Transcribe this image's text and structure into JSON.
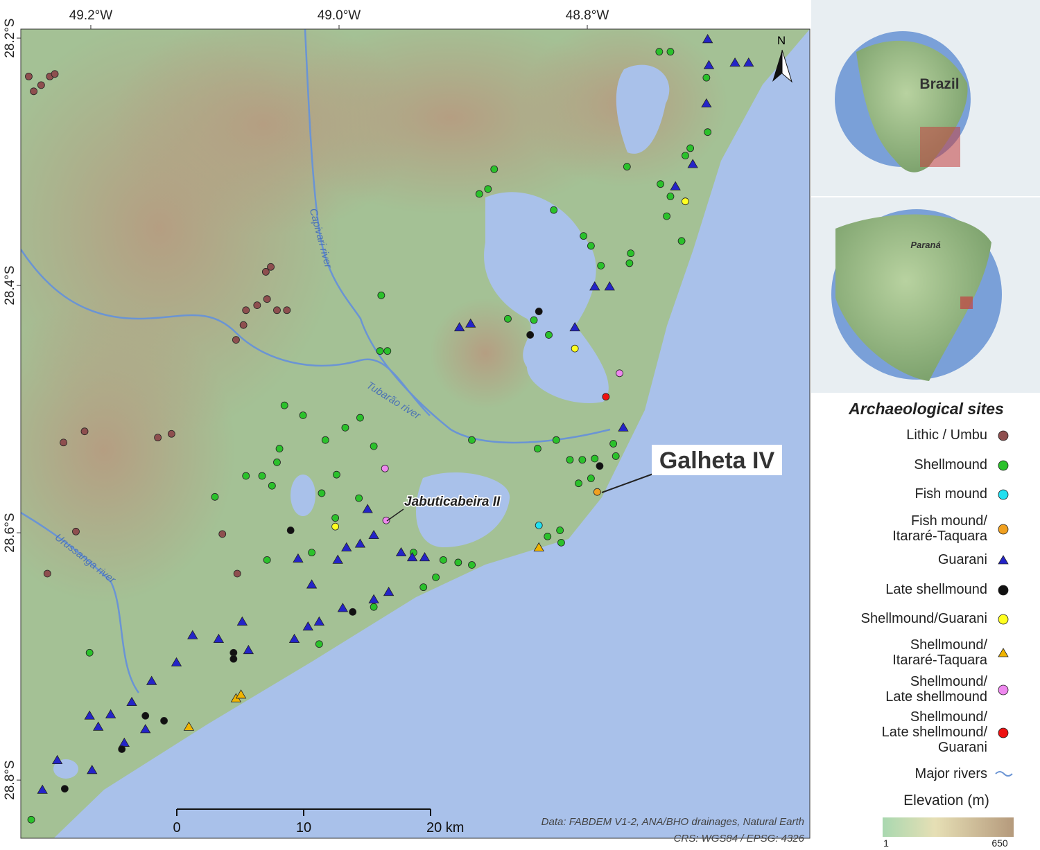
{
  "chart_data": {
    "type": "map",
    "xlim": [
      -49.2564,
      -48.6207
    ],
    "ylim": [
      -28.847,
      -28.1927
    ],
    "xticks": [
      {
        "value": -49.2,
        "label": "49.2°W"
      },
      {
        "value": -49.0,
        "label": "49.0°W"
      },
      {
        "value": -48.8,
        "label": "48.8°W"
      }
    ],
    "yticks": [
      {
        "value": -28.2,
        "label": "28.2°S"
      },
      {
        "value": -28.4,
        "label": "28.4°S"
      },
      {
        "value": -28.6,
        "label": "28.6°S"
      },
      {
        "value": -28.8,
        "label": "28.8°S"
      }
    ],
    "legend_title": "Archaeological sites",
    "sites": [
      {
        "name": "Lithic / Umbu",
        "color": "#8e4f4f",
        "marker": "circle",
        "lon": [
          -49.25,
          -49.246,
          -49.24,
          -49.233,
          -49.229,
          -49.059,
          -49.055,
          -49.075,
          -49.066,
          -49.058,
          -49.05,
          -49.042,
          -49.077,
          -49.083,
          -49.222,
          -49.205,
          -49.146,
          -49.135,
          -49.212,
          -49.094,
          -49.235,
          -49.082
        ],
        "lat": [
          -28.231,
          -28.243,
          -28.238,
          -28.231,
          -28.229,
          -28.389,
          -28.385,
          -28.42,
          -28.416,
          -28.411,
          -28.42,
          -28.42,
          -28.432,
          -28.444,
          -28.527,
          -28.518,
          -28.523,
          -28.52,
          -28.599,
          -28.601,
          -28.633,
          -28.633
        ]
      },
      {
        "name": "Shellmound",
        "color": "#2bc12b",
        "marker": "circle",
        "lon": [
          -48.742,
          -48.733,
          -48.704,
          -48.703,
          -48.721,
          -48.717,
          -48.875,
          -48.887,
          -48.88,
          -48.768,
          -48.741,
          -48.733,
          -48.736,
          -48.724,
          -48.827,
          -48.803,
          -48.797,
          -48.789,
          -48.765,
          -48.766,
          -48.966,
          -48.864,
          -48.843,
          -48.831,
          -48.967,
          -48.961,
          -49.044,
          -49.029,
          -49.011,
          -48.995,
          -48.983,
          -48.972,
          -49.048,
          -49.05,
          -49.062,
          -49.075,
          -49.054,
          -49.002,
          -49.014,
          -48.984,
          -49.1,
          -49.003,
          -49.058,
          -49.022,
          -48.893,
          -48.84,
          -48.825,
          -48.814,
          -48.804,
          -48.794,
          -48.779,
          -48.777,
          -48.807,
          -48.797,
          -48.822,
          -48.832,
          -48.821,
          -48.916,
          -48.904,
          -48.893,
          -48.922,
          -48.932,
          -48.972,
          -49.016,
          -49.201,
          -49.248,
          -48.94
        ],
        "lat": [
          -28.211,
          -28.211,
          -28.232,
          -28.276,
          -28.295,
          -28.289,
          -28.306,
          -28.326,
          -28.322,
          -28.304,
          -28.318,
          -28.328,
          -28.344,
          -28.364,
          -28.339,
          -28.36,
          -28.368,
          -28.384,
          -28.374,
          -28.382,
          -28.408,
          -28.427,
          -28.428,
          -28.44,
          -28.453,
          -28.453,
          -28.497,
          -28.505,
          -28.525,
          -28.515,
          -28.507,
          -28.53,
          -28.532,
          -28.543,
          -28.554,
          -28.554,
          -28.562,
          -28.553,
          -28.568,
          -28.572,
          -28.571,
          -28.588,
          -28.622,
          -28.616,
          -28.525,
          -28.532,
          -28.525,
          -28.541,
          -28.541,
          -28.54,
          -28.528,
          -28.538,
          -28.56,
          -28.556,
          -28.598,
          -28.603,
          -28.608,
          -28.622,
          -28.624,
          -28.626,
          -28.636,
          -28.644,
          -28.66,
          -28.69,
          -28.697,
          -28.832,
          -28.616
        ]
      },
      {
        "name": "Fish mound",
        "color": "#22e0f0",
        "marker": "circle",
        "lon": [
          -48.839
        ],
        "lat": [
          -28.594
        ]
      },
      {
        "name": "Fish mound/\nItararé-Taquara",
        "color": "#f0a020",
        "marker": "circle",
        "lon": [
          -48.792
        ],
        "lat": [
          -28.567
        ]
      },
      {
        "name": "Guarani",
        "color": "#2424c8",
        "marker": "triangle",
        "lon": [
          -48.703,
          -48.702,
          -48.681,
          -48.67,
          -48.704,
          -48.715,
          -48.729,
          -48.794,
          -48.782,
          -48.81,
          -48.903,
          -48.894,
          -48.977,
          -48.983,
          -48.972,
          -48.994,
          -49.001,
          -49.033,
          -48.95,
          -48.941,
          -48.931,
          -48.96,
          -48.997,
          -48.972,
          -49.022,
          -49.025,
          -49.036,
          -49.016,
          -49.078,
          -49.073,
          -49.097,
          -49.118,
          -49.131,
          -49.151,
          -49.167,
          -49.201,
          -49.184,
          -49.194,
          -49.156,
          -49.173,
          -49.199,
          -49.227,
          -49.239,
          -48.771
        ],
        "lat": [
          -28.201,
          -28.222,
          -28.22,
          -28.22,
          -28.253,
          -28.302,
          -28.32,
          -28.401,
          -28.401,
          -28.434,
          -28.434,
          -28.431,
          -28.581,
          -28.609,
          -28.602,
          -28.612,
          -28.622,
          -28.621,
          -28.616,
          -28.62,
          -28.62,
          -28.648,
          -28.661,
          -28.654,
          -28.642,
          -28.676,
          -28.686,
          -28.672,
          -28.672,
          -28.695,
          -28.686,
          -28.683,
          -28.705,
          -28.72,
          -28.737,
          -28.748,
          -28.747,
          -28.757,
          -28.759,
          -28.77,
          -28.792,
          -28.784,
          -28.808,
          -28.515
        ]
      },
      {
        "name": "Late shellmound",
        "color": "#111111",
        "marker": "circle",
        "lon": [
          -48.839,
          -48.846,
          -49.039,
          -48.989,
          -49.085,
          -49.085,
          -49.156,
          -49.141,
          -49.175,
          -49.221,
          -48.79
        ],
        "lat": [
          -28.421,
          -28.44,
          -28.598,
          -28.664,
          -28.697,
          -28.702,
          -28.748,
          -28.752,
          -28.775,
          -28.807,
          -28.546
        ]
      },
      {
        "name": "Shellmound/Guarani",
        "color": "#ffff20",
        "marker": "circle",
        "lon": [
          -48.721,
          -49.003,
          -48.81
        ],
        "lat": [
          -28.332,
          -28.595,
          -28.451
        ]
      },
      {
        "name": "Shellmound/\nItararé-Taquara",
        "color": "#f0b400",
        "marker": "triangle",
        "lon": [
          -48.839,
          -49.121,
          -49.083,
          -49.079
        ],
        "lat": [
          -28.612,
          -28.757,
          -28.734,
          -28.731
        ]
      },
      {
        "name": "Shellmound/\nLate shellmound",
        "color": "#ee88ee",
        "marker": "circle",
        "lon": [
          -48.962,
          -48.963,
          -48.774
        ],
        "lat": [
          -28.59,
          -28.548,
          -28.471
        ]
      },
      {
        "name": "Shellmound/\nLate shellmound/\nGuarani",
        "color": "#ee1111",
        "marker": "circle",
        "lon": [
          -48.785
        ],
        "lat": [
          -28.49
        ]
      }
    ],
    "rivers": {
      "name": "Major rivers",
      "color": "#6a94d4"
    },
    "elevation": {
      "title": "Elevation (m)",
      "range": [
        1,
        650
      ]
    },
    "annotations": [
      "Galheta IV",
      "Jabuticabeira II"
    ],
    "river_labels": [
      "Capivari river",
      "Tubarão river",
      "Urussanga river"
    ],
    "inset_labels": [
      "Brazil",
      "Paraná"
    ],
    "north": "N",
    "scale_bar": {
      "ticks": [
        0,
        10,
        {
          "value": 20,
          "label": "20 km"
        }
      ]
    },
    "source": [
      "Data: FABDEM V1-2, ANA/BHO drainages, Natural Earth",
      "CRS: WGS84 / EPSG: 4326"
    ]
  }
}
